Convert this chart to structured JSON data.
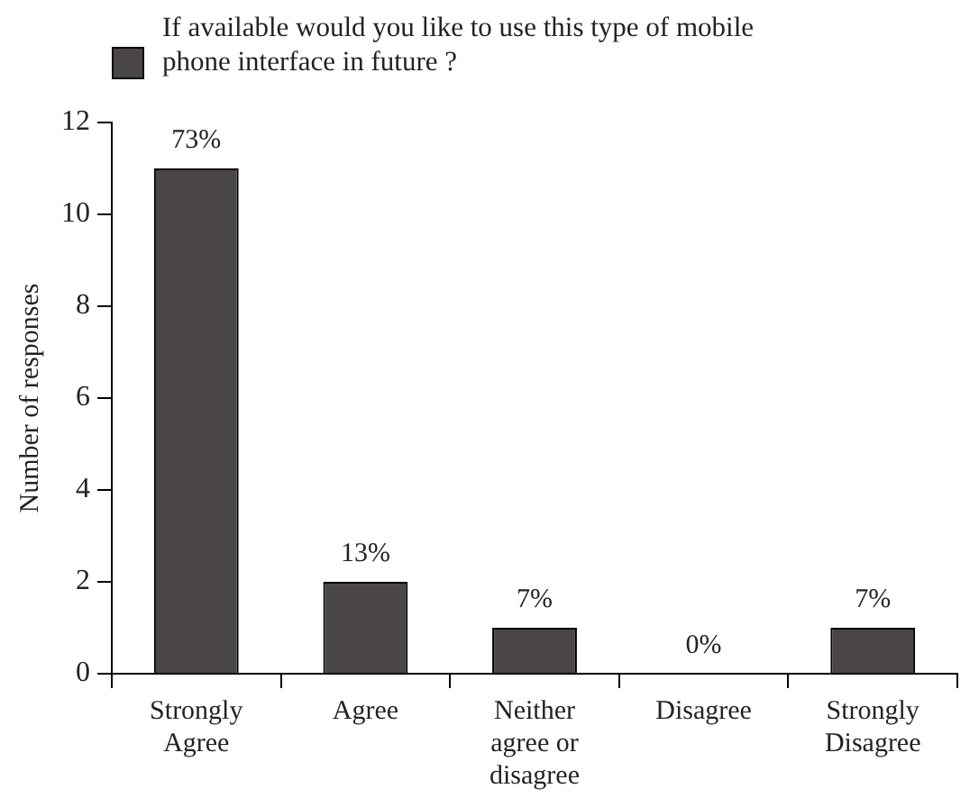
{
  "chart_data": {
    "type": "bar",
    "ylabel": "Number of responses",
    "categories": [
      "Strongly Agree",
      "Agree",
      "Neither agree or disagree",
      "Disagree",
      "Strongly Disagree"
    ],
    "series": [
      {
        "name": "If available would you like to use this type of mobile phone interface in future ?",
        "color": "#4a4646",
        "values": [
          11,
          2,
          1,
          0,
          1
        ]
      }
    ],
    "annotations": [
      {
        "text": "73%",
        "x": "Strongly Agree",
        "y": 11
      },
      {
        "text": "13%",
        "x": "Agree",
        "y": 2
      },
      {
        "text": "7%",
        "x": "Neither agree or disagree",
        "y": 1
      },
      {
        "text": "0%",
        "x": "Disagree",
        "y": 0
      },
      {
        "text": "7%",
        "x": "Strongly Disagree",
        "y": 1
      }
    ],
    "ylim": [
      0,
      12
    ],
    "yticks": [
      0,
      2,
      4,
      6,
      8,
      10,
      12
    ],
    "grid": false,
    "legend": "top"
  }
}
